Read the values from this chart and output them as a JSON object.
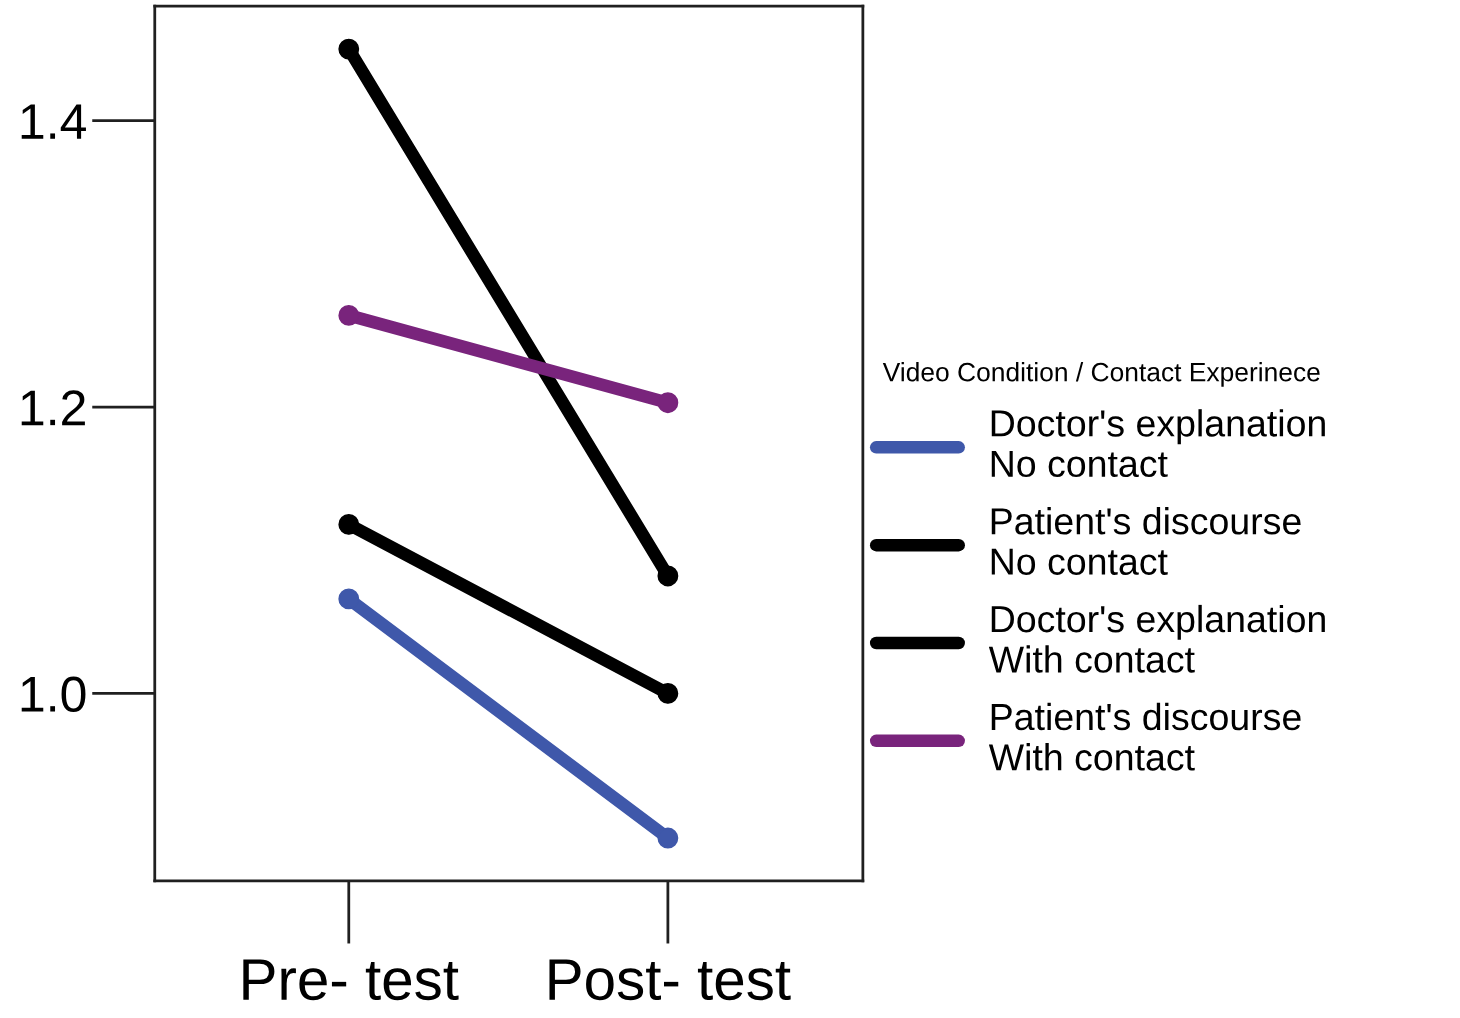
{
  "chart_data": {
    "type": "line",
    "legend_title": "Video Condition / Contact Experinece",
    "categories": [
      "Pre- test",
      "Post- test"
    ],
    "series": [
      {
        "name": "Doctor's explanation\nNo contact",
        "color": "#3f58aa",
        "values": [
          1.066,
          0.899
        ]
      },
      {
        "name": "Patient's discourse\nNo contact",
        "color": "#000000",
        "values": [
          1.45,
          1.082
        ]
      },
      {
        "name": "Doctor's explanation\nWith contact",
        "color": "#000000",
        "values": [
          1.118,
          1.0
        ]
      },
      {
        "name": "Patient's discourse\nWith contact",
        "color": "#79247c",
        "values": [
          1.264,
          1.203
        ]
      }
    ],
    "ylim": [
      0.869,
      1.48
    ],
    "yticks": [
      {
        "value": 1.0,
        "label": "1.0"
      },
      {
        "value": 1.2,
        "label": "1.2"
      },
      {
        "value": 1.4,
        "label": "1.4"
      }
    ],
    "grid": false,
    "legend": "right",
    "marker": "circle",
    "line_style": "solid"
  }
}
